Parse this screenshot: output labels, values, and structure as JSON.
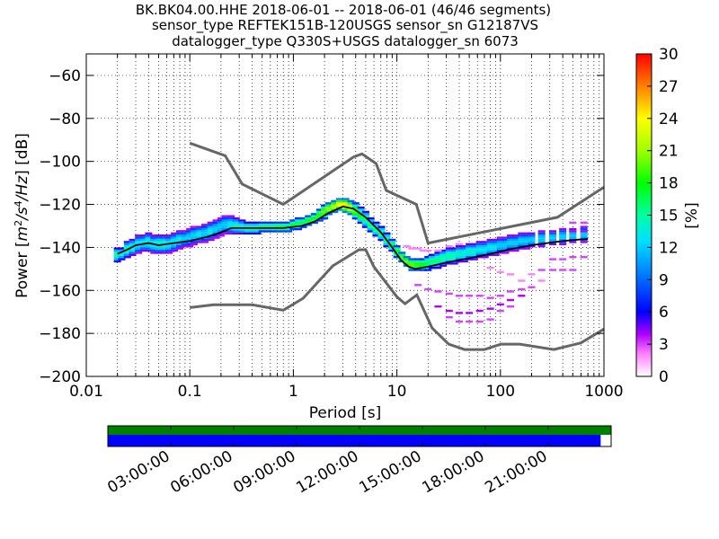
{
  "chart_data": [
    {
      "type": "heatmap",
      "title_lines": [
        "BK.BK04.00.HHE   2018-06-01 -- 2018-06-01  (46/46 segments)",
        "sensor_type REFTEK151B-120USGS sensor_sn G12187VS",
        "datalogger_type Q330S+USGS datalogger_sn 6073"
      ],
      "xlabel": "Period [s]",
      "ylabel_prefix": "Power [",
      "ylabel_unit_base": "m",
      "ylabel_unit_exp1": "2",
      "ylabel_unit_slash1": "/s",
      "ylabel_unit_exp2": "4",
      "ylabel_unit_slash2": "/Hz",
      "ylabel_suffix": "] [dB]",
      "x_scale": "log",
      "xlim": [
        0.01,
        1000
      ],
      "ylim": [
        -200,
        -50
      ],
      "x_ticks": [
        0.01,
        0.1,
        1,
        10,
        100,
        1000
      ],
      "x_tick_labels": [
        "0.01",
        "0.1",
        "1",
        "10",
        "100",
        "1000"
      ],
      "y_ticks": [
        -200,
        -180,
        -160,
        -140,
        -120,
        -100,
        -80,
        -60
      ],
      "y_tick_labels": [
        "−200",
        "−180",
        "−160",
        "−140",
        "−120",
        "−100",
        "−80",
        "−60"
      ],
      "grid": true,
      "colorbar": {
        "label": "[%]",
        "range": [
          0,
          30
        ],
        "ticks": [
          0,
          3,
          6,
          9,
          12,
          15,
          18,
          21,
          24,
          27,
          30
        ],
        "tick_labels": [
          "0",
          "3",
          "6",
          "9",
          "12",
          "15",
          "18",
          "21",
          "24",
          "27",
          "30"
        ]
      },
      "noise_model_high": [
        [
          0.1,
          -91.5
        ],
        [
          0.22,
          -97.4
        ],
        [
          0.32,
          -110.5
        ],
        [
          0.8,
          -120
        ],
        [
          3.8,
          -98
        ],
        [
          4.6,
          -96.5
        ],
        [
          6.3,
          -101
        ],
        [
          7.9,
          -113.5
        ],
        [
          15.4,
          -120
        ],
        [
          20,
          -138
        ],
        [
          354.8,
          -126
        ],
        [
          1000,
          -112
        ]
      ],
      "noise_model_low": [
        [
          0.1,
          -168
        ],
        [
          0.17,
          -166.7
        ],
        [
          0.4,
          -166.7
        ],
        [
          0.8,
          -169.2
        ],
        [
          1.24,
          -163.7
        ],
        [
          2.4,
          -148.6
        ],
        [
          4.3,
          -141.1
        ],
        [
          5,
          -141.1
        ],
        [
          6,
          -149
        ],
        [
          10,
          -163
        ],
        [
          12,
          -166.2
        ],
        [
          15.6,
          -162.1
        ],
        [
          21.9,
          -177.5
        ],
        [
          31.6,
          -185
        ],
        [
          45,
          -187.5
        ],
        [
          70,
          -187.5
        ],
        [
          101,
          -185
        ],
        [
          154,
          -185
        ],
        [
          328,
          -187.5
        ],
        [
          600,
          -184.4
        ],
        [
          1000,
          -178
        ]
      ],
      "mean_curve": [
        [
          0.02,
          -143
        ],
        [
          0.025,
          -141
        ],
        [
          0.03,
          -139
        ],
        [
          0.04,
          -138
        ],
        [
          0.05,
          -139
        ],
        [
          0.07,
          -138
        ],
        [
          0.1,
          -137
        ],
        [
          0.15,
          -135
        ],
        [
          0.2,
          -133
        ],
        [
          0.25,
          -131
        ],
        [
          0.35,
          -131
        ],
        [
          0.5,
          -131
        ],
        [
          0.8,
          -131
        ],
        [
          1.2,
          -130
        ],
        [
          1.6,
          -128
        ],
        [
          2.2,
          -124
        ],
        [
          3,
          -121
        ],
        [
          3.8,
          -122
        ],
        [
          5,
          -126
        ],
        [
          7,
          -133
        ],
        [
          9,
          -140
        ],
        [
          11,
          -146
        ],
        [
          13,
          -149
        ],
        [
          15,
          -150
        ],
        [
          20,
          -149
        ],
        [
          30,
          -147
        ],
        [
          50,
          -145
        ],
        [
          80,
          -143
        ],
        [
          120,
          -141
        ],
        [
          200,
          -139
        ],
        [
          400,
          -137
        ],
        [
          700,
          -136
        ]
      ],
      "psd_cells": [
        {
          "period": 0.02,
          "lo": -147,
          "hi": -140,
          "peak": 15
        },
        {
          "period": 0.022,
          "lo": -146,
          "hi": -140,
          "peak": 14
        },
        {
          "period": 0.025,
          "lo": -145,
          "hi": -137,
          "peak": 15
        },
        {
          "period": 0.028,
          "lo": -144,
          "hi": -136,
          "peak": 14
        },
        {
          "period": 0.032,
          "lo": -143,
          "hi": -134,
          "peak": 13
        },
        {
          "period": 0.036,
          "lo": -142,
          "hi": -134,
          "peak": 13
        },
        {
          "period": 0.04,
          "lo": -142,
          "hi": -133,
          "peak": 14
        },
        {
          "period": 0.045,
          "lo": -143,
          "hi": -134,
          "peak": 13
        },
        {
          "period": 0.05,
          "lo": -143,
          "hi": -134,
          "peak": 14
        },
        {
          "period": 0.056,
          "lo": -143,
          "hi": -134,
          "peak": 14
        },
        {
          "period": 0.063,
          "lo": -143,
          "hi": -134,
          "peak": 13
        },
        {
          "period": 0.071,
          "lo": -142,
          "hi": -133,
          "peak": 13
        },
        {
          "period": 0.08,
          "lo": -141,
          "hi": -132,
          "peak": 13
        },
        {
          "period": 0.09,
          "lo": -140,
          "hi": -132,
          "peak": 12
        },
        {
          "period": 0.1,
          "lo": -140,
          "hi": -131,
          "peak": 12
        },
        {
          "period": 0.11,
          "lo": -139,
          "hi": -130,
          "peak": 12
        },
        {
          "period": 0.125,
          "lo": -138,
          "hi": -130,
          "peak": 13
        },
        {
          "period": 0.14,
          "lo": -138,
          "hi": -129,
          "peak": 12
        },
        {
          "period": 0.16,
          "lo": -137,
          "hi": -128,
          "peak": 13
        },
        {
          "period": 0.18,
          "lo": -136,
          "hi": -127,
          "peak": 12
        },
        {
          "period": 0.2,
          "lo": -135,
          "hi": -126,
          "peak": 12
        },
        {
          "period": 0.22,
          "lo": -134,
          "hi": -125,
          "peak": 12
        },
        {
          "period": 0.25,
          "lo": -134,
          "hi": -125,
          "peak": 13
        },
        {
          "period": 0.28,
          "lo": -134,
          "hi": -126,
          "peak": 14
        },
        {
          "period": 0.32,
          "lo": -134,
          "hi": -127,
          "peak": 14
        },
        {
          "period": 0.36,
          "lo": -134,
          "hi": -128,
          "peak": 15
        },
        {
          "period": 0.4,
          "lo": -134,
          "hi": -128,
          "peak": 15
        },
        {
          "period": 0.45,
          "lo": -134,
          "hi": -128,
          "peak": 15
        },
        {
          "period": 0.5,
          "lo": -133,
          "hi": -128,
          "peak": 16
        },
        {
          "period": 0.56,
          "lo": -133,
          "hi": -128,
          "peak": 16
        },
        {
          "period": 0.63,
          "lo": -133,
          "hi": -128,
          "peak": 16
        },
        {
          "period": 0.71,
          "lo": -133,
          "hi": -128,
          "peak": 17
        },
        {
          "period": 0.8,
          "lo": -133,
          "hi": -128,
          "peak": 17
        },
        {
          "period": 0.9,
          "lo": -133,
          "hi": -128,
          "peak": 17
        },
        {
          "period": 1.0,
          "lo": -132,
          "hi": -127,
          "peak": 17
        },
        {
          "period": 1.12,
          "lo": -132,
          "hi": -126,
          "peak": 17
        },
        {
          "period": 1.25,
          "lo": -131,
          "hi": -126,
          "peak": 17
        },
        {
          "period": 1.4,
          "lo": -130,
          "hi": -125,
          "peak": 18
        },
        {
          "period": 1.6,
          "lo": -129,
          "hi": -124,
          "peak": 18
        },
        {
          "period": 1.8,
          "lo": -128,
          "hi": -122,
          "peak": 19
        },
        {
          "period": 2.0,
          "lo": -127,
          "hi": -120,
          "peak": 20
        },
        {
          "period": 2.2,
          "lo": -125,
          "hi": -119,
          "peak": 21
        },
        {
          "period": 2.5,
          "lo": -124,
          "hi": -118,
          "peak": 22
        },
        {
          "period": 2.8,
          "lo": -123,
          "hi": -117,
          "peak": 24
        },
        {
          "period": 3.2,
          "lo": -124,
          "hi": -117,
          "peak": 25
        },
        {
          "period": 3.6,
          "lo": -125,
          "hi": -118,
          "peak": 23
        },
        {
          "period": 4.0,
          "lo": -127,
          "hi": -119,
          "peak": 20
        },
        {
          "period": 4.5,
          "lo": -129,
          "hi": -121,
          "peak": 18
        },
        {
          "period": 5.0,
          "lo": -131,
          "hi": -123,
          "peak": 16
        },
        {
          "period": 5.6,
          "lo": -133,
          "hi": -126,
          "peak": 16
        },
        {
          "period": 6.3,
          "lo": -135,
          "hi": -128,
          "peak": 16
        },
        {
          "period": 7.1,
          "lo": -137,
          "hi": -130,
          "peak": 16
        },
        {
          "period": 8.0,
          "lo": -140,
          "hi": -133,
          "peak": 16
        },
        {
          "period": 9.0,
          "lo": -142,
          "hi": -136,
          "peak": 17
        },
        {
          "period": 10.0,
          "lo": -145,
          "hi": -139,
          "peak": 18
        },
        {
          "period": 11.2,
          "lo": -147,
          "hi": -142,
          "peak": 19
        },
        {
          "period": 12.5,
          "lo": -149,
          "hi": -144,
          "peak": 20
        },
        {
          "period": 14.0,
          "lo": -151,
          "hi": -145,
          "peak": 20
        },
        {
          "period": 16.0,
          "lo": -151,
          "hi": -145,
          "peak": 19
        },
        {
          "period": 18.0,
          "lo": -151,
          "hi": -145,
          "peak": 18
        },
        {
          "period": 20.0,
          "lo": -151,
          "hi": -144,
          "peak": 17
        },
        {
          "period": 22.0,
          "lo": -150,
          "hi": -143,
          "peak": 16
        },
        {
          "period": 25.0,
          "lo": -150,
          "hi": -142,
          "peak": 16
        },
        {
          "period": 28.0,
          "lo": -149,
          "hi": -141,
          "peak": 15
        },
        {
          "period": 32.0,
          "lo": -148,
          "hi": -140,
          "peak": 15
        },
        {
          "period": 36.0,
          "lo": -148,
          "hi": -140,
          "peak": 15
        },
        {
          "period": 40.0,
          "lo": -147,
          "hi": -139,
          "peak": 14
        },
        {
          "period": 45.0,
          "lo": -147,
          "hi": -139,
          "peak": 14
        },
        {
          "period": 50.0,
          "lo": -146,
          "hi": -138,
          "peak": 14
        },
        {
          "period": 56.0,
          "lo": -146,
          "hi": -138,
          "peak": 14
        },
        {
          "period": 63.0,
          "lo": -145,
          "hi": -137,
          "peak": 13
        },
        {
          "period": 71.0,
          "lo": -145,
          "hi": -137,
          "peak": 13
        },
        {
          "period": 80.0,
          "lo": -144,
          "hi": -136,
          "peak": 13
        },
        {
          "period": 90.0,
          "lo": -144,
          "hi": -136,
          "peak": 13
        },
        {
          "period": 100.0,
          "lo": -143,
          "hi": -135,
          "peak": 12
        },
        {
          "period": 112.0,
          "lo": -143,
          "hi": -135,
          "peak": 12
        },
        {
          "period": 125.0,
          "lo": -142,
          "hi": -134,
          "peak": 12
        },
        {
          "period": 140.0,
          "lo": -142,
          "hi": -134,
          "peak": 12
        },
        {
          "period": 160.0,
          "lo": -141,
          "hi": -133,
          "peak": 12
        },
        {
          "period": 180.0,
          "lo": -141,
          "hi": -133,
          "peak": 12
        },
        {
          "period": 200.0,
          "lo": -140,
          "hi": -133,
          "peak": 12
        },
        {
          "period": 250.0,
          "lo": -140,
          "hi": -132,
          "peak": 12
        },
        {
          "period": 320.0,
          "lo": -139,
          "hi": -132,
          "peak": 12
        },
        {
          "period": 400.0,
          "lo": -139,
          "hi": -131,
          "peak": 12
        },
        {
          "period": 500.0,
          "lo": -138,
          "hi": -131,
          "peak": 12
        },
        {
          "period": 640.0,
          "lo": -138,
          "hi": -130,
          "peak": 12
        }
      ],
      "psd_outliers": [
        [
          12.5,
          -140,
          2
        ],
        [
          14,
          -141,
          2
        ],
        [
          16,
          -141,
          2
        ],
        [
          18,
          -142,
          2
        ],
        [
          20,
          -142,
          2
        ],
        [
          25,
          -142,
          2
        ],
        [
          32,
          -140,
          2
        ],
        [
          40,
          -139,
          2
        ],
        [
          16,
          -158,
          3
        ],
        [
          20,
          -160,
          3
        ],
        [
          25,
          -161,
          3
        ],
        [
          32,
          -162,
          3
        ],
        [
          40,
          -163,
          3
        ],
        [
          50,
          -163,
          3
        ],
        [
          63,
          -163,
          3
        ],
        [
          80,
          -164,
          3
        ],
        [
          100,
          -163,
          3
        ],
        [
          125,
          -161,
          3
        ],
        [
          160,
          -160,
          3
        ],
        [
          200,
          -159,
          3
        ],
        [
          25,
          -168,
          4
        ],
        [
          32,
          -170,
          4
        ],
        [
          40,
          -171,
          4
        ],
        [
          50,
          -171,
          4
        ],
        [
          63,
          -170,
          4
        ],
        [
          80,
          -169,
          4
        ],
        [
          100,
          -167,
          4
        ],
        [
          125,
          -165,
          4
        ],
        [
          160,
          -163,
          4
        ],
        [
          32,
          -173,
          3
        ],
        [
          40,
          -175,
          3
        ],
        [
          50,
          -175,
          3
        ],
        [
          63,
          -175,
          3
        ],
        [
          80,
          -174,
          3
        ],
        [
          100,
          -170,
          3
        ],
        [
          125,
          -168,
          3
        ],
        [
          250,
          -151,
          3
        ],
        [
          320,
          -151,
          3
        ],
        [
          400,
          -151,
          3
        ],
        [
          500,
          -151,
          3
        ],
        [
          320,
          -146,
          3
        ],
        [
          400,
          -146,
          3
        ],
        [
          500,
          -145,
          3
        ],
        [
          640,
          -145,
          3
        ],
        [
          200,
          -153,
          2
        ],
        [
          250,
          -156,
          2
        ],
        [
          160,
          -156,
          2
        ],
        [
          100,
          -152,
          2
        ],
        [
          125,
          -153,
          2
        ],
        [
          80,
          -150,
          2
        ],
        [
          500,
          -133,
          4
        ],
        [
          640,
          -133,
          4
        ],
        [
          640,
          -129,
          3
        ],
        [
          500,
          -129,
          3
        ]
      ],
      "timeline": {
        "labels": [
          "03:00:00",
          "06:00:00",
          "09:00:00",
          "12:00:00",
          "15:00:00",
          "18:00:00",
          "21:00:00"
        ],
        "hours": [
          3,
          6,
          9,
          12,
          15,
          18,
          21
        ],
        "range_hours": [
          0,
          24
        ],
        "data_coverage_end_hours": 23.5,
        "top_color": "#008000",
        "bottom_color": "#0000ff"
      },
      "colors": {
        "noise_model": "#666666",
        "mean_line": "#000000"
      }
    }
  ]
}
